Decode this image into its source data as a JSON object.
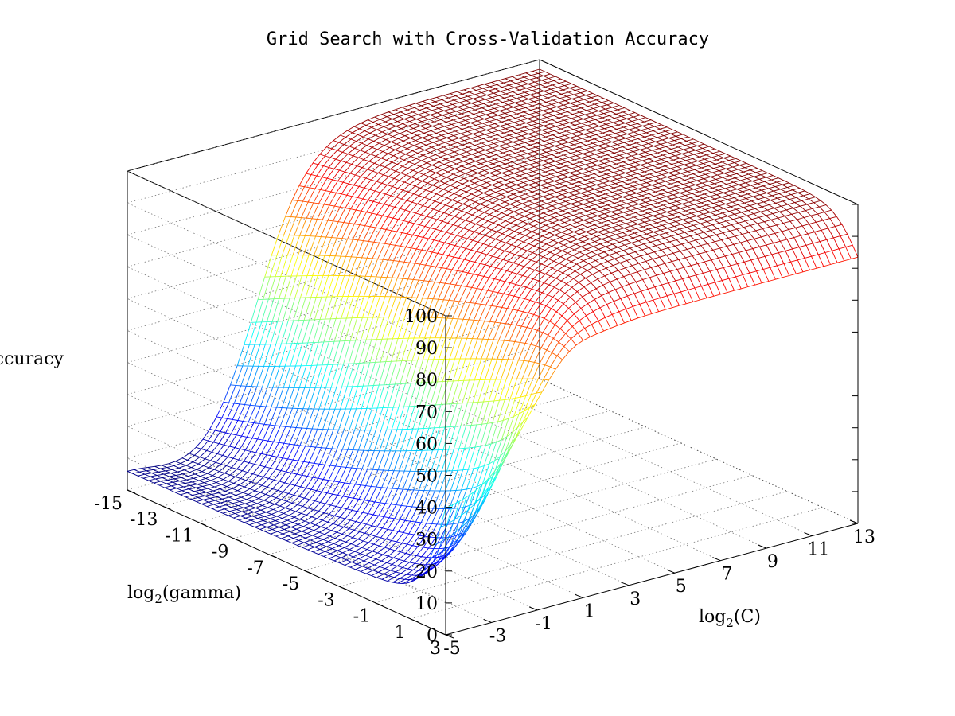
{
  "chart_data": {
    "type": "surface-3d",
    "title": "Grid Search with Cross-Validation Accuracy",
    "xlabel": {
      "prefix": "log",
      "sub": "2",
      "suffix": "(C)"
    },
    "ylabel": {
      "prefix": "log",
      "sub": "2",
      "suffix": "(gamma)"
    },
    "zlabel": "Accuracy",
    "x_ticks": [
      "-5",
      "-3",
      "-1",
      "1",
      "3",
      "5",
      "7",
      "9",
      "11",
      "13"
    ],
    "y_ticks": [
      "3",
      "1",
      "-1",
      "-3",
      "-5",
      "-7",
      "-9",
      "-11",
      "-13",
      "-15"
    ],
    "z_ticks": [
      "0",
      "10",
      "20",
      "30",
      "40",
      "50",
      "60",
      "70",
      "80",
      "90",
      "100"
    ],
    "x_range": [
      -5,
      13
    ],
    "y_range": [
      -15,
      3
    ],
    "z_range": [
      0,
      100
    ],
    "grid": true,
    "colormap": "jet",
    "description_values": {
      "plateau_accuracy": 97,
      "low_gamma_low_C_accuracy": 3,
      "high_gamma_accuracy": 70
    }
  }
}
